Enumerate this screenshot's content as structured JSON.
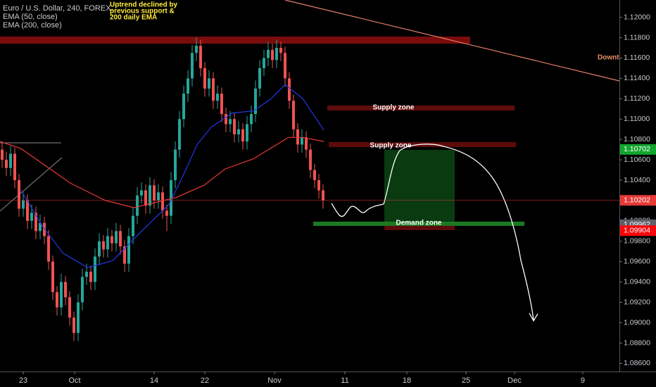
{
  "chart_data": {
    "type": "candlestick",
    "title": "Euro / U.S. Dollar, 240, FOREX.",
    "annotation": [
      "Uptrend declined by",
      "previous support &",
      "200 daily EMA"
    ],
    "zone_labels": [
      "Supply zone",
      "Supply zone",
      "Demand zone"
    ],
    "trend_label": "Downt",
    "up_color": "#26a69a",
    "down_color": "#ef5350",
    "xlim": [
      -0.5,
      146.17
    ],
    "xticks": [
      {
        "value": 5,
        "label": "23"
      },
      {
        "value": 17.17,
        "label": "Oct"
      },
      {
        "value": 36,
        "label": "14"
      },
      {
        "value": 48,
        "label": "22"
      },
      {
        "value": 64.5,
        "label": "Nov"
      },
      {
        "value": 81.17,
        "label": "11"
      },
      {
        "value": 95.83,
        "label": "18"
      },
      {
        "value": 109.83,
        "label": "25"
      },
      {
        "value": 121.33,
        "label": "Dec"
      },
      {
        "value": 137.5,
        "label": "9"
      }
    ],
    "ylim": [
      1.0852,
      1.1217
    ],
    "yticks": [
      {
        "value": 1.12,
        "label": "1.12000"
      },
      {
        "value": 1.118,
        "label": "1.11800"
      },
      {
        "value": 1.116,
        "label": "1.11600"
      },
      {
        "value": 1.114,
        "label": "1.11400"
      },
      {
        "value": 1.112,
        "label": "1.11200"
      },
      {
        "value": 1.11,
        "label": "1.11000"
      },
      {
        "value": 1.108,
        "label": "1.10800"
      },
      {
        "value": 1.106,
        "label": "1.10600"
      },
      {
        "value": 1.104,
        "label": "1.10400"
      },
      {
        "value": 1.102,
        "label": "1.10200"
      },
      {
        "value": 1.1,
        "label": "1.10000"
      },
      {
        "value": 1.098,
        "label": "1.09800"
      },
      {
        "value": 1.096,
        "label": "1.09600"
      },
      {
        "value": 1.094,
        "label": "1.09400"
      },
      {
        "value": 1.092,
        "label": "1.09200"
      },
      {
        "value": 1.09,
        "label": "1.09000"
      },
      {
        "value": 1.088,
        "label": "1.08800"
      },
      {
        "value": 1.086,
        "label": "1.08600"
      }
    ],
    "price_labels": [
      {
        "value": 1.10702,
        "label": "1.10702",
        "color": "#13a52f"
      },
      {
        "value": 1.10202,
        "label": "1.10202",
        "color": "#e53935"
      },
      {
        "value": 1.09962,
        "label": "1.09962",
        "color": "#5d606b"
      },
      {
        "value": 1.09904,
        "label": "1.09904",
        "color": "#f7070b"
      }
    ],
    "candles": [
      [
        1.107,
        1.1078,
        1.1052,
        1.106
      ],
      [
        1.106,
        1.1068,
        1.1044,
        1.1052
      ],
      [
        1.1052,
        1.1074,
        1.1044,
        1.1066
      ],
      [
        1.1066,
        1.1072,
        1.1032,
        1.104
      ],
      [
        1.104,
        1.1046,
        1.1004,
        1.1012
      ],
      [
        1.1012,
        1.1028,
        1.1004,
        1.102
      ],
      [
        1.102,
        1.1026,
        1.0992,
        1.1
      ],
      [
        1.1,
        1.1016,
        1.0992,
        1.1008
      ],
      [
        1.1008,
        1.1014,
        1.0982,
        1.099
      ],
      [
        1.099,
        1.1006,
        1.0982,
        1.0998
      ],
      [
        1.0998,
        1.1004,
        1.0977,
        1.0985
      ],
      [
        1.0985,
        1.0991,
        1.0952,
        1.096
      ],
      [
        1.096,
        1.0966,
        1.0922,
        1.093
      ],
      [
        1.093,
        1.0936,
        1.0907,
        1.0915
      ],
      [
        1.0915,
        1.0948,
        1.0907,
        1.094
      ],
      [
        1.094,
        1.0946,
        1.0917,
        1.0925
      ],
      [
        1.0925,
        1.0931,
        1.0897,
        1.0905
      ],
      [
        1.0905,
        1.0911,
        1.0882,
        1.089
      ],
      [
        1.089,
        1.0928,
        1.0882,
        1.092
      ],
      [
        1.092,
        1.0953,
        1.0912,
        1.0945
      ],
      [
        1.0945,
        1.0958,
        1.0937,
        1.095
      ],
      [
        1.095,
        1.0956,
        1.0932,
        1.094
      ],
      [
        1.094,
        1.0973,
        1.0932,
        1.0965
      ],
      [
        1.0965,
        1.0988,
        1.0957,
        1.098
      ],
      [
        1.098,
        1.0986,
        1.0964,
        1.0972
      ],
      [
        1.0972,
        1.0993,
        1.0964,
        1.0985
      ],
      [
        1.0985,
        1.0991,
        1.097,
        1.0978
      ],
      [
        1.0978,
        1.0998,
        1.097,
        1.099
      ],
      [
        1.099,
        1.0996,
        1.0967,
        1.0975
      ],
      [
        1.0975,
        1.0981,
        1.095,
        1.0958
      ],
      [
        1.0958,
        1.0993,
        1.095,
        1.0985
      ],
      [
        1.0985,
        1.1013,
        1.0977,
        1.1005
      ],
      [
        1.1005,
        1.1033,
        1.0997,
        1.1025
      ],
      [
        1.1025,
        1.1038,
        1.1017,
        1.103
      ],
      [
        1.103,
        1.1036,
        1.1007,
        1.1015
      ],
      [
        1.1015,
        1.1043,
        1.1007,
        1.1035
      ],
      [
        1.1035,
        1.1041,
        1.1012,
        1.102
      ],
      [
        1.102,
        1.1036,
        1.1012,
        1.1028
      ],
      [
        1.1028,
        1.1034,
        1.1002,
        1.101
      ],
      [
        1.101,
        1.1016,
        1.099,
        1.1005
      ],
      [
        1.1005,
        1.1048,
        1.0997,
        1.104
      ],
      [
        1.104,
        1.1078,
        1.1032,
        1.107
      ],
      [
        1.107,
        1.1108,
        1.1062,
        1.11
      ],
      [
        1.11,
        1.1133,
        1.1092,
        1.1125
      ],
      [
        1.1125,
        1.1148,
        1.1117,
        1.114
      ],
      [
        1.114,
        1.1173,
        1.1132,
        1.1165
      ],
      [
        1.1165,
        1.118,
        1.1157,
        1.1172
      ],
      [
        1.1172,
        1.1178,
        1.1142,
        1.115
      ],
      [
        1.115,
        1.1156,
        1.1122,
        1.113
      ],
      [
        1.113,
        1.1148,
        1.1122,
        1.114
      ],
      [
        1.114,
        1.1146,
        1.111,
        1.1118
      ],
      [
        1.1118,
        1.1133,
        1.111,
        1.1125
      ],
      [
        1.1125,
        1.1131,
        1.1097,
        1.1105
      ],
      [
        1.1105,
        1.1111,
        1.1087,
        1.1095
      ],
      [
        1.1095,
        1.1108,
        1.1087,
        1.11
      ],
      [
        1.11,
        1.1106,
        1.1077,
        1.1085
      ],
      [
        1.1085,
        1.1098,
        1.1077,
        1.109
      ],
      [
        1.109,
        1.1096,
        1.107,
        1.1078
      ],
      [
        1.1078,
        1.1103,
        1.107,
        1.1095
      ],
      [
        1.1095,
        1.1113,
        1.1087,
        1.1105
      ],
      [
        1.1105,
        1.1138,
        1.1097,
        1.113
      ],
      [
        1.113,
        1.1158,
        1.1122,
        1.115
      ],
      [
        1.115,
        1.1168,
        1.1142,
        1.116
      ],
      [
        1.116,
        1.1176,
        1.1152,
        1.1168
      ],
      [
        1.1168,
        1.1174,
        1.115,
        1.1158
      ],
      [
        1.1158,
        1.1178,
        1.115,
        1.117
      ],
      [
        1.117,
        1.1176,
        1.1157,
        1.1165
      ],
      [
        1.1165,
        1.1171,
        1.1132,
        1.114
      ],
      [
        1.114,
        1.1146,
        1.111,
        1.1118
      ],
      [
        1.1118,
        1.1124,
        1.1082,
        1.109
      ],
      [
        1.109,
        1.1096,
        1.1067,
        1.1075
      ],
      [
        1.1075,
        1.109,
        1.1067,
        1.1082
      ],
      [
        1.1082,
        1.1088,
        1.1062,
        1.107
      ],
      [
        1.107,
        1.1076,
        1.1042,
        1.105
      ],
      [
        1.105,
        1.1056,
        1.1032,
        1.104
      ],
      [
        1.104,
        1.1046,
        1.1022,
        1.103
      ],
      [
        1.103,
        1.1036,
        1.1012,
        1.102
      ]
    ],
    "series": [
      {
        "name": "EMA (50, close)",
        "color": "#2338e8",
        "x": [
          4.5,
          9.5,
          14.5,
          20.3,
          26.2,
          32.8,
          39.5,
          42.8,
          46.2,
          49.5,
          54.5,
          59.5,
          63.7,
          67,
          71.2,
          76.2
        ],
        "values": [
          1.103,
          1.0995,
          1.0968,
          1.0954,
          1.0961,
          1.0989,
          1.1016,
          1.1044,
          1.1075,
          1.1092,
          1.1106,
          1.1108,
          1.112,
          1.1134,
          1.112,
          1.1089
        ]
      },
      {
        "name": "EMA (200, close)",
        "color": "#e53935",
        "x": [
          -0.5,
          4.5,
          16.2,
          24.5,
          31.2,
          41.2,
          47.8,
          52.8,
          59.5,
          67.8,
          71.2,
          76.2
        ],
        "values": [
          1.1078,
          1.1071,
          1.1037,
          1.102,
          1.1013,
          1.1023,
          1.1035,
          1.1051,
          1.1061,
          1.1082,
          1.1082,
          1.1078
        ]
      }
    ]
  }
}
